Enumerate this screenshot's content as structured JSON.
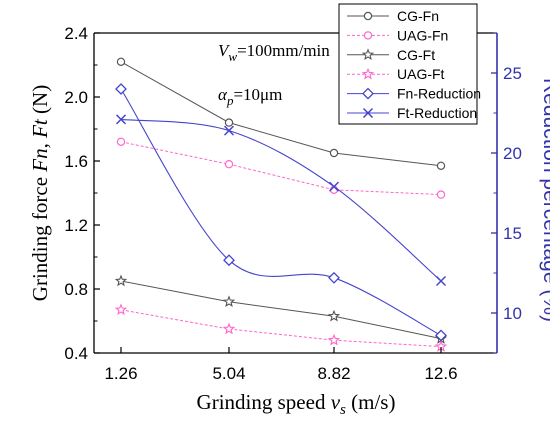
{
  "chart_data": {
    "type": "line",
    "x": [
      1.26,
      5.04,
      8.82,
      12.6
    ],
    "xticks": [
      "1.26",
      "5.04",
      "8.82",
      "12.6"
    ],
    "xlabel": {
      "main": "Grinding speed ",
      "var": "v",
      "sub": "s",
      "unit": " (m/s)"
    },
    "ylabel_left": {
      "pre": "Grinding force ",
      "v1": "Fn",
      "mid": ", ",
      "v2": "Ft",
      "unit": " (N)"
    },
    "ylabel_right": "Reduction percentage (%)",
    "ylim_left": [
      0.4,
      2.4
    ],
    "yticks_left": [
      "0.4",
      "0.8",
      "1.2",
      "1.6",
      "2.0",
      "2.4"
    ],
    "ylim_right": [
      7.5,
      27.5
    ],
    "yticks_right": [
      "10",
      "15",
      "20",
      "25"
    ],
    "annotations": {
      "vw": {
        "var": "V",
        "sub": "w",
        "rest": "=100mm/min"
      },
      "ap": {
        "var": "α",
        "sub": "p",
        "rest": "=10μm"
      }
    },
    "series": [
      {
        "name": "CG-Fn",
        "axis": "left",
        "values": [
          2.22,
          1.84,
          1.65,
          1.57
        ],
        "color": "#555555",
        "marker": "circle",
        "dash": false,
        "smooth": false
      },
      {
        "name": "UAG-Fn",
        "axis": "left",
        "values": [
          1.72,
          1.58,
          1.42,
          1.39
        ],
        "color": "#ff66cc",
        "marker": "circle",
        "dash": true,
        "smooth": false
      },
      {
        "name": "CG-Ft",
        "axis": "left",
        "values": [
          0.85,
          0.72,
          0.63,
          0.49
        ],
        "color": "#555555",
        "marker": "star",
        "dash": false,
        "smooth": false
      },
      {
        "name": "UAG-Ft",
        "axis": "left",
        "values": [
          0.67,
          0.55,
          0.48,
          0.44
        ],
        "color": "#ff66cc",
        "marker": "star",
        "dash": true,
        "smooth": false
      },
      {
        "name": "Fn-Reduction",
        "axis": "right",
        "values": [
          24.0,
          13.3,
          12.2,
          8.6
        ],
        "color": "#4444cc",
        "marker": "diamond",
        "dash": false,
        "smooth": true
      },
      {
        "name": "Ft-Reduction",
        "axis": "right",
        "values": [
          22.1,
          21.4,
          17.9,
          12.0
        ],
        "color": "#4444cc",
        "marker": "x",
        "dash": false,
        "smooth": true
      }
    ],
    "legend_position": "top-right"
  }
}
